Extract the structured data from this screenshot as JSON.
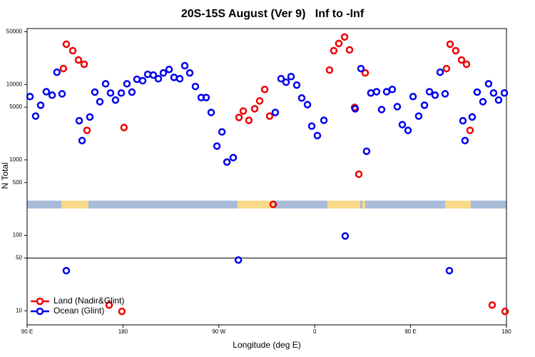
{
  "chart_data": {
    "type": "scatter",
    "title": "20S-15S August (Ver 9)   Inf to -Inf",
    "xlabel": "Longitude (deg E)",
    "ylabel": "N Total",
    "xlim": [
      90,
      540
    ],
    "xticks": [
      {
        "value": 90,
        "label": "90 E"
      },
      180,
      {
        "value": 270,
        "label": "90 W"
      },
      {
        "value": 360,
        "label": "0"
      },
      {
        "value": 450,
        "label": "90 E"
      },
      {
        "value": 540,
        "label": "180"
      }
    ],
    "ylim": [
      6.5,
      55000
    ],
    "log_y": true,
    "yticks": [
      10,
      50,
      100,
      500,
      1000,
      5000,
      10000,
      50000
    ],
    "ref_line": 50,
    "legend": "bottom-left",
    "series": [
      {
        "name": "Land (Nadir&Glint)",
        "color": "#ee0000",
        "x": [
          124.1,
          126.8,
          132.9,
          138.2,
          143.6,
          146.2,
          167,
          179,
          181,
          288.9,
          292.9,
          298.2,
          303.6,
          308.3,
          313,
          317.7,
          321,
          373.9,
          377.9,
          382.6,
          388,
          392.7,
          397.4,
          401.4,
          407.4,
          483.7,
          487.1,
          492.4,
          497.8,
          502.5,
          505.8,
          526.6,
          538.7
        ],
        "values": [
          16200,
          34100,
          28000,
          21100,
          18500,
          2460,
          11.9,
          9.8,
          2680,
          3650,
          4440,
          3340,
          4750,
          6040,
          8580,
          3800,
          257,
          15500,
          28000,
          34900,
          42500,
          28700,
          4960,
          646,
          14200,
          16200,
          34100,
          28000,
          21100,
          18500,
          2460,
          11.9,
          9.8
        ]
      },
      {
        "name": "Ocean (Glint)",
        "color": "#0000ee",
        "x": [
          92.7,
          98,
          102.7,
          108,
          113.5,
          118,
          122.8,
          126.8,
          138.9,
          141.6,
          148.9,
          153.6,
          158.3,
          163.7,
          168.3,
          173,
          178.4,
          183.7,
          188.4,
          193.1,
          198.5,
          203.2,
          208.5,
          213.2,
          217.9,
          223.3,
          227.9,
          233.3,
          238,
          242.7,
          248,
          253.4,
          258.1,
          262.8,
          268.2,
          272.9,
          277.6,
          283.5,
          288.3,
          323,
          328.4,
          333.1,
          337.8,
          343.1,
          347.8,
          353.2,
          357.2,
          362.5,
          368.6,
          388.6,
          398,
          403.4,
          408.7,
          412.7,
          418.1,
          422.8,
          427.5,
          432.8,
          437.5,
          442.2,
          447.6,
          452.3,
          457.6,
          463,
          467.7,
          473,
          477.7,
          482.4,
          486.4,
          499.1,
          501.1,
          507.8,
          512.5,
          517.9,
          523.2,
          527.9,
          532.6,
          538
        ],
        "values": [
          6900,
          3800,
          5300,
          8000,
          7200,
          14500,
          7500,
          34,
          3300,
          1800,
          3700,
          7900,
          5900,
          10200,
          7700,
          6200,
          7700,
          10200,
          7900,
          11700,
          11200,
          13600,
          13300,
          11900,
          14200,
          15800,
          12400,
          11900,
          17700,
          14200,
          9400,
          6700,
          6700,
          4250,
          1520,
          2350,
          935,
          1070,
          47,
          4250,
          11900,
          10700,
          12700,
          9800,
          6600,
          5400,
          2800,
          2100,
          3340,
          98,
          4750,
          16200,
          1300,
          7700,
          8000,
          4640,
          8000,
          8580,
          5070,
          2930,
          2460,
          6900,
          3800,
          5300,
          8000,
          7200,
          14500,
          7500,
          34,
          3300,
          1800,
          3700,
          7900,
          5900,
          10200,
          7700,
          6200,
          7700
        ]
      }
    ]
  }
}
